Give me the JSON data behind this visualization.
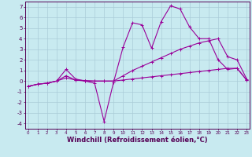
{
  "background_color": "#c8eaf0",
  "grid_color": "#aaccd8",
  "line_color": "#990099",
  "xlim": [
    -0.3,
    23.3
  ],
  "ylim": [
    -4.5,
    7.5
  ],
  "xlabel": "Windchill (Refroidissement éolien,°C)",
  "xlabel_fontsize": 6.0,
  "curve1_x": [
    0,
    1,
    2,
    3,
    4,
    5,
    6,
    7,
    8,
    9,
    10,
    11,
    12,
    13,
    14,
    15,
    16,
    17,
    18,
    19,
    20,
    21,
    22,
    23
  ],
  "curve1_y": [
    -0.5,
    -0.3,
    -0.2,
    0.0,
    1.1,
    0.2,
    0.0,
    -0.2,
    -3.8,
    -0.1,
    3.2,
    5.5,
    5.3,
    3.1,
    5.6,
    7.1,
    6.8,
    5.1,
    4.0,
    4.0,
    2.0,
    1.1,
    1.2,
    0.1
  ],
  "curve2_x": [
    0,
    1,
    2,
    3,
    4,
    5,
    6,
    7,
    8,
    9,
    10,
    11,
    12,
    13,
    14,
    15,
    16,
    17,
    18,
    19,
    20,
    21,
    22,
    23
  ],
  "curve2_y": [
    -0.5,
    -0.3,
    -0.2,
    0.0,
    0.5,
    0.1,
    0.05,
    0.0,
    0.0,
    0.0,
    0.5,
    1.0,
    1.4,
    1.8,
    2.2,
    2.6,
    3.0,
    3.3,
    3.6,
    3.8,
    4.0,
    2.3,
    2.0,
    0.2
  ],
  "curve3_x": [
    0,
    1,
    2,
    3,
    4,
    5,
    6,
    7,
    8,
    9,
    10,
    11,
    12,
    13,
    14,
    15,
    16,
    17,
    18,
    19,
    20,
    21,
    22,
    23
  ],
  "curve3_y": [
    -0.5,
    -0.3,
    -0.2,
    0.0,
    0.3,
    0.1,
    0.0,
    0.0,
    0.0,
    0.0,
    0.1,
    0.2,
    0.3,
    0.4,
    0.5,
    0.6,
    0.7,
    0.8,
    0.9,
    1.0,
    1.1,
    1.2,
    1.2,
    0.1
  ],
  "yticks": [
    -4,
    -3,
    -2,
    -1,
    0,
    1,
    2,
    3,
    4,
    5,
    6,
    7
  ],
  "xticks": [
    0,
    1,
    2,
    3,
    4,
    5,
    6,
    7,
    8,
    9,
    10,
    11,
    12,
    13,
    14,
    15,
    16,
    17,
    18,
    19,
    20,
    21,
    22,
    23
  ]
}
